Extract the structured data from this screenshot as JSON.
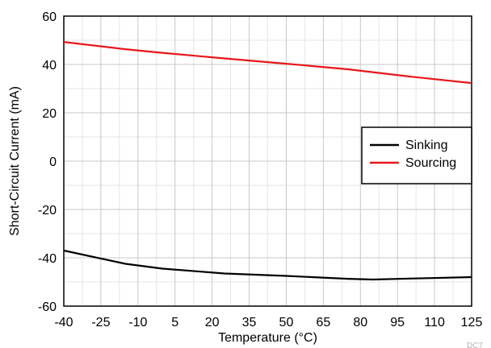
{
  "chart_data": {
    "type": "line",
    "xlabel": "Temperature (°C)",
    "ylabel": "Short-Circuit Current (mA)",
    "xlim": [
      -40,
      125
    ],
    "ylim": [
      -60,
      60
    ],
    "xticks": [
      -40,
      -25,
      -10,
      5,
      20,
      35,
      50,
      65,
      80,
      95,
      110,
      125
    ],
    "yticks": [
      -60,
      -40,
      -20,
      0,
      20,
      40,
      60
    ],
    "grid": true,
    "legend_position": "right",
    "series": [
      {
        "name": "Sinking",
        "color": "#000000",
        "x": [
          -40,
          -15,
          0,
          25,
          50,
          75,
          85,
          100,
          125
        ],
        "y": [
          -37,
          -42.5,
          -44.5,
          -46.5,
          -47.5,
          -48.7,
          -49,
          -48.6,
          -48
        ]
      },
      {
        "name": "Sourcing",
        "color": "#e8161b",
        "x": [
          -40,
          -15,
          0,
          25,
          50,
          75,
          85,
          100,
          125
        ],
        "y": [
          49.3,
          46.3,
          44.8,
          42.5,
          40.3,
          38,
          36.8,
          35,
          32.3
        ]
      }
    ]
  },
  "corner_label": "DC7"
}
